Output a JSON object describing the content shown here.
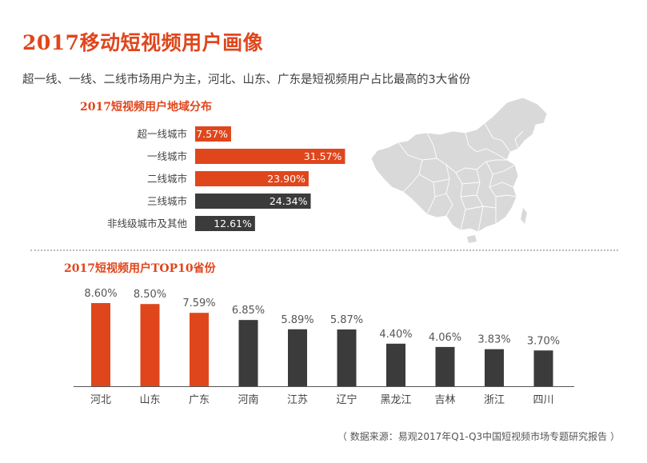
{
  "title": "2017移动短视频用户画像",
  "subtitle": "超一线、一线、二线市场用户为主，河北、山东、广东是短视频用户占比最高的3大省份",
  "source": "（ 数据来源：易观2017年Q1-Q3中国短视频市场专题研究报告 ）",
  "colors": {
    "accent": "#e0461c",
    "dark": "#3b3b3b",
    "map_fill": "#d9d9d9",
    "map_line": "#ffffff"
  },
  "chart_data": [
    {
      "type": "bar",
      "orientation": "horizontal",
      "title": "2017短视频用户地域分布",
      "categories": [
        "超一线城市",
        "一线城市",
        "二线城市",
        "三线城市",
        "非线级城市及其他"
      ],
      "values": [
        7.57,
        31.57,
        23.9,
        24.34,
        12.61
      ],
      "value_labels": [
        "7.57%",
        "31.57%",
        "23.90%",
        "24.34%",
        "12.61%"
      ],
      "bar_colors": [
        "#e0461c",
        "#e0461c",
        "#e0461c",
        "#3b3b3b",
        "#3b3b3b"
      ],
      "xlim": [
        0,
        32
      ]
    },
    {
      "type": "bar",
      "title": "2017短视频用户TOP10省份",
      "categories": [
        "河北",
        "山东",
        "广东",
        "河南",
        "江苏",
        "辽宁",
        "黑龙江",
        "吉林",
        "浙江",
        "四川"
      ],
      "values": [
        8.6,
        8.5,
        7.59,
        6.85,
        5.89,
        5.87,
        4.4,
        4.06,
        3.83,
        3.7
      ],
      "value_labels": [
        "8.60%",
        "8.50%",
        "7.59%",
        "6.85%",
        "5.89%",
        "5.87%",
        "4.40%",
        "4.06%",
        "3.83%",
        "3.70%"
      ],
      "bar_colors": [
        "#e0461c",
        "#e0461c",
        "#e0461c",
        "#3b3b3b",
        "#3b3b3b",
        "#3b3b3b",
        "#3b3b3b",
        "#3b3b3b",
        "#3b3b3b",
        "#3b3b3b"
      ],
      "ylim": [
        0,
        8.6
      ]
    }
  ]
}
